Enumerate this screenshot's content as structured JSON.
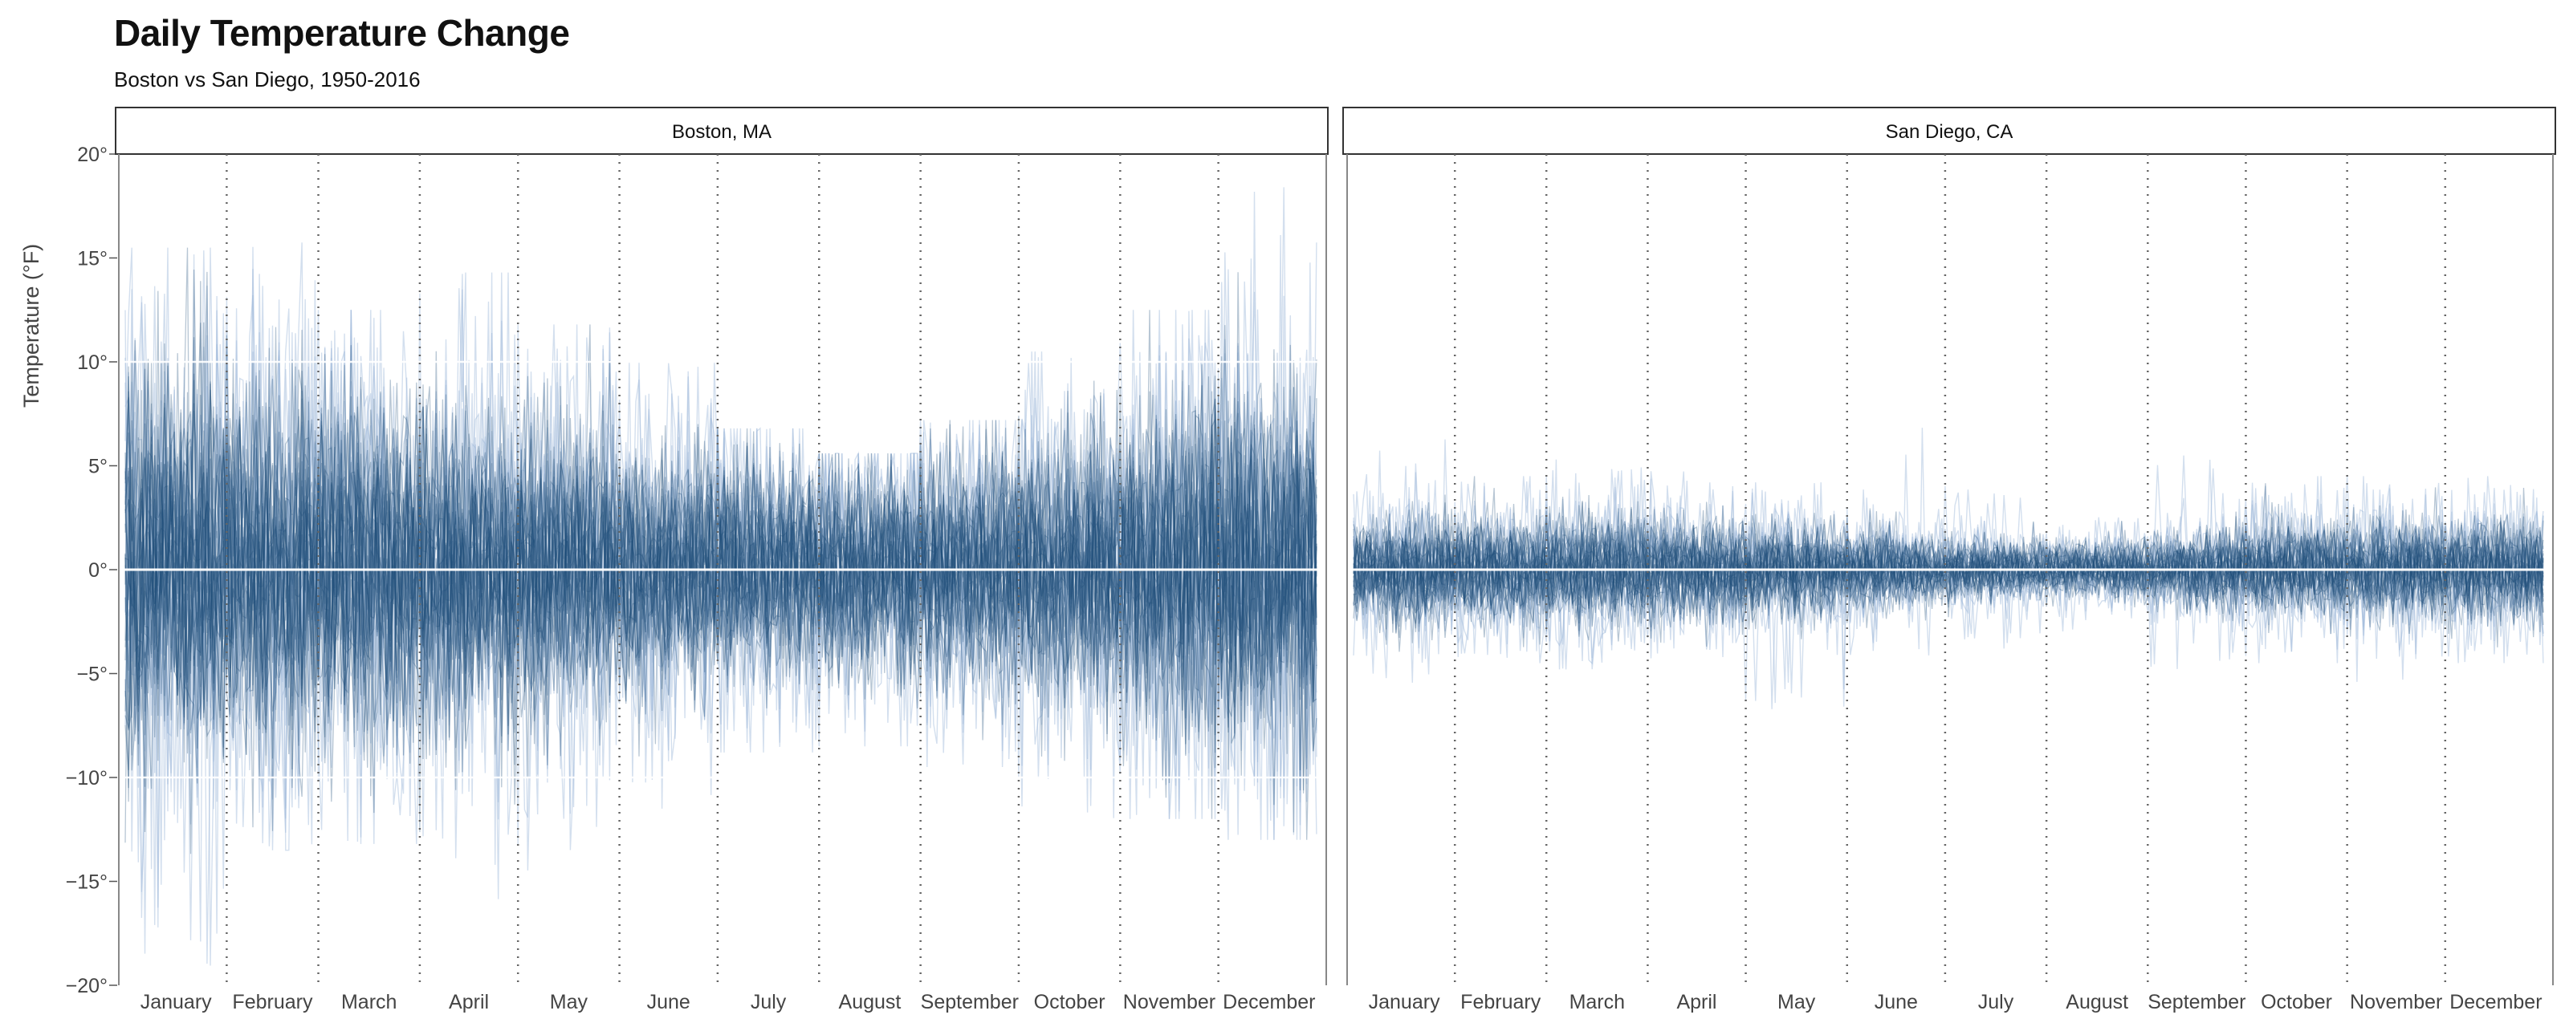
{
  "header": {
    "title": "Daily Temperature Change",
    "subtitle": "Boston vs San Diego, 1950-2016"
  },
  "chart_data": {
    "type": "line",
    "title": "Daily Temperature Change",
    "subtitle": "Boston vs San Diego, 1950-2016",
    "xlabel": "",
    "ylabel": "Temperature (°F)",
    "ylim": [
      -20,
      20
    ],
    "yticks": [
      -20,
      -15,
      -10,
      -5,
      0,
      5,
      10,
      15,
      20
    ],
    "ytick_labels": [
      "−20°",
      "−15°",
      "−10°",
      "−5°",
      "0°",
      "5°",
      "10°",
      "15°",
      "20°"
    ],
    "x_categories": [
      "January",
      "February",
      "March",
      "April",
      "May",
      "June",
      "July",
      "August",
      "September",
      "October",
      "November",
      "December"
    ],
    "month_days": [
      31,
      28,
      31,
      30,
      31,
      30,
      31,
      31,
      30,
      31,
      30,
      31
    ],
    "series_color": "#1f4e79",
    "series_light_color": "#9db8d9",
    "zero_line_color": "#ffffff",
    "gridlines_y": [
      -10,
      10
    ],
    "facets": [
      {
        "name": "Boston, MA",
        "typical_abs_change_by_month": [
          5.2,
          4.9,
          4.6,
          4.2,
          3.8,
          3.3,
          2.8,
          2.7,
          3.0,
          3.6,
          4.3,
          4.9
        ],
        "max_change_by_month": [
          15.5,
          15.8,
          12.5,
          14.3,
          11.8,
          10.0,
          6.8,
          5.6,
          7.2,
          10.5,
          12.5,
          18.4
        ],
        "min_change_by_month": [
          -19.2,
          -13.5,
          -13.2,
          -16.0,
          -14.5,
          -11.5,
          -8.8,
          -8.5,
          -9.5,
          -12.5,
          -12.0,
          -13.0
        ]
      },
      {
        "name": "San Diego, CA",
        "typical_abs_change_by_month": [
          1.4,
          1.4,
          1.5,
          1.3,
          1.2,
          1.0,
          0.8,
          0.7,
          1.0,
          1.2,
          1.3,
          1.3
        ],
        "max_change_by_month": [
          6.5,
          4.5,
          5.3,
          5.0,
          4.2,
          7.0,
          4.2,
          3.2,
          6.3,
          4.5,
          4.5,
          4.5
        ],
        "min_change_by_month": [
          -5.5,
          -4.5,
          -4.8,
          -5.0,
          -6.8,
          -4.5,
          -3.8,
          -3.0,
          -5.0,
          -4.5,
          -5.5,
          -4.5
        ]
      }
    ]
  }
}
